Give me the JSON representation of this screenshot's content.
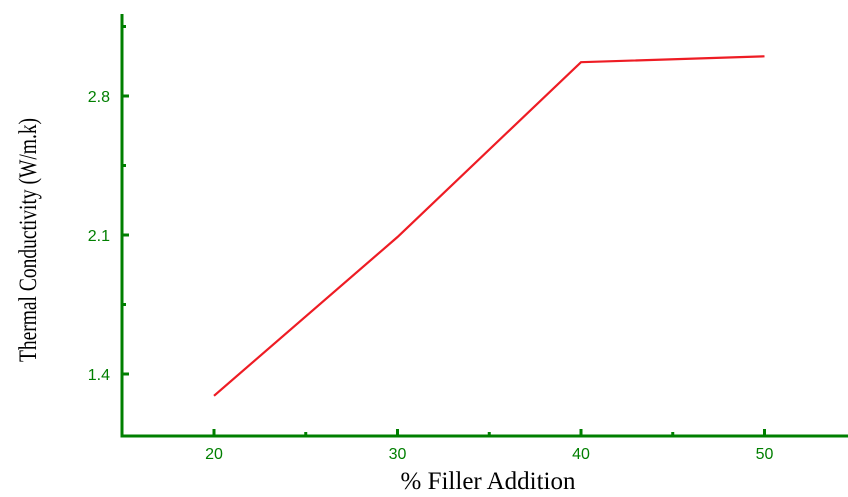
{
  "chart_data": {
    "type": "line",
    "title": "",
    "xlabel": "% Filler Addition",
    "ylabel": "Thermal Conductivity (W/m.k)",
    "x": [
      20,
      30,
      40,
      50
    ],
    "series": [
      {
        "values": [
          1.29,
          2.09,
          2.97,
          3.0
        ]
      }
    ],
    "xlim": [
      15,
      55
    ],
    "ylim": [
      1.1,
      3.17
    ],
    "x_major_ticks": [
      20,
      30,
      40,
      50
    ],
    "x_minor_ticks": [
      25,
      35,
      45
    ],
    "y_major_ticks": [
      1.4,
      2.1,
      2.8
    ],
    "y_minor_ticks": [
      1.75,
      2.45,
      3.15
    ],
    "x_tick_labels": [
      "20",
      "30",
      "40",
      "50"
    ],
    "y_tick_labels": [
      "1.4",
      "2.1",
      "2.8"
    ],
    "grid": false,
    "legend": "none",
    "colors": {
      "line": "#ee1c24",
      "axis": "#007f00",
      "tick_labels": "#007f00",
      "axis_titles": "#000000"
    }
  }
}
